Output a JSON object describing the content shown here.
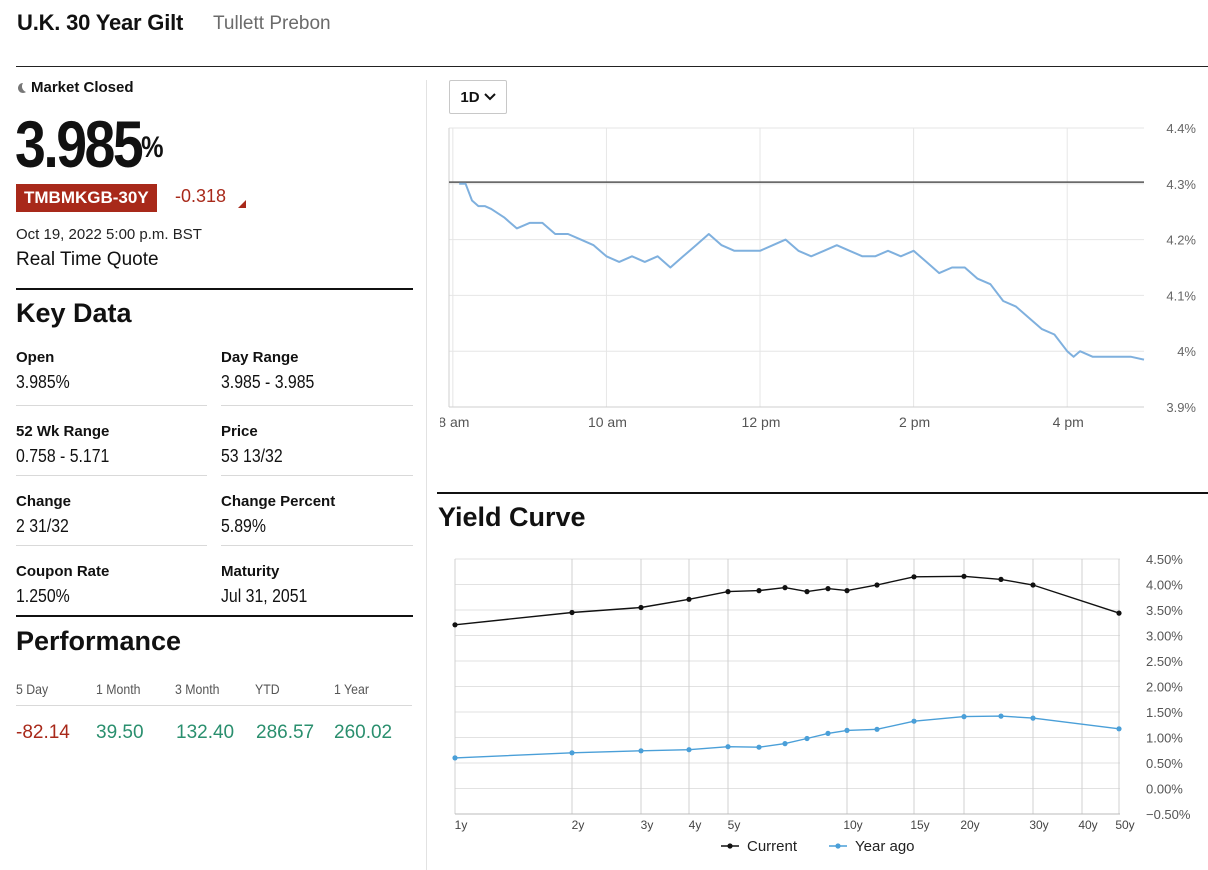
{
  "header": {
    "title": "U.K. 30 Year Gilt",
    "source": "Tullett Prebon"
  },
  "quote": {
    "market_status": "Market Closed",
    "price": "3.985",
    "price_unit": "%",
    "ticker": "TMBMKGB-30Y",
    "change": "-0.318",
    "timestamp": "Oct 19, 2022 5:00 p.m. BST",
    "quote_type": "Real Time Quote"
  },
  "key_data": {
    "title": "Key Data",
    "items": [
      {
        "label": "Open",
        "value": "3.985%"
      },
      {
        "label": "Day Range",
        "value": "3.985 - 3.985"
      },
      {
        "label": "52 Wk Range",
        "value": "0.758 - 5.171"
      },
      {
        "label": "Price",
        "value": "53 13/32"
      },
      {
        "label": "Change",
        "value": "2 31/32"
      },
      {
        "label": "Change Percent",
        "value": "5.89%"
      },
      {
        "label": "Coupon Rate",
        "value": "1.250%"
      },
      {
        "label": "Maturity",
        "value": "Jul 31, 2051"
      }
    ]
  },
  "performance": {
    "title": "Performance",
    "items": [
      {
        "label": "5 Day",
        "value": "-82.14",
        "direction": "neg"
      },
      {
        "label": "1 Month",
        "value": "39.50",
        "direction": "pos"
      },
      {
        "label": "3 Month",
        "value": "132.40",
        "direction": "pos"
      },
      {
        "label": "YTD",
        "value": "286.57",
        "direction": "pos"
      },
      {
        "label": "1 Year",
        "value": "260.02",
        "direction": "pos"
      }
    ]
  },
  "colors": {
    "negative": "#a8291a",
    "positive": "#2a8f6e",
    "intraday_line": "#7fb0de",
    "current_series": "#111111",
    "year_ago_series": "#4a9fd8"
  },
  "range_selector": {
    "selected": "1D"
  },
  "yield_curve_title": "Yield Curve",
  "chart_data": [
    {
      "type": "line",
      "x": [
        "8:05",
        "8:10",
        "8:15",
        "8:20",
        "8:25",
        "8:30",
        "8:40",
        "8:50",
        "9:00",
        "9:10",
        "9:20",
        "9:30",
        "9:40",
        "9:50",
        "10:00",
        "10:10",
        "10:20",
        "10:30",
        "10:40",
        "10:50",
        "11:00",
        "11:10",
        "11:20",
        "11:30",
        "11:40",
        "11:50",
        "12:00",
        "12:10",
        "12:20",
        "12:30",
        "12:40",
        "12:50",
        "13:00",
        "13:10",
        "13:20",
        "13:30",
        "13:40",
        "13:50",
        "14:00",
        "14:10",
        "14:20",
        "14:30",
        "14:40",
        "14:50",
        "15:00",
        "15:10",
        "15:20",
        "15:30",
        "15:40",
        "15:50",
        "16:00",
        "16:05",
        "16:10",
        "16:20",
        "16:30",
        "16:40",
        "16:50",
        "17:00"
      ],
      "y": [
        4.3,
        4.3,
        4.27,
        4.26,
        4.26,
        4.255,
        4.24,
        4.22,
        4.23,
        4.23,
        4.21,
        4.21,
        4.2,
        4.19,
        4.17,
        4.16,
        4.17,
        4.16,
        4.17,
        4.15,
        4.17,
        4.19,
        4.21,
        4.19,
        4.18,
        4.18,
        4.18,
        4.19,
        4.2,
        4.18,
        4.17,
        4.18,
        4.19,
        4.18,
        4.17,
        4.17,
        4.18,
        4.17,
        4.18,
        4.16,
        4.14,
        4.15,
        4.15,
        4.13,
        4.12,
        4.09,
        4.08,
        4.06,
        4.04,
        4.03,
        4.0,
        3.99,
        4.0,
        3.99,
        3.99,
        3.99,
        3.99,
        3.985
      ],
      "xticks": [
        "8 am",
        "10 am",
        "12 pm",
        "2 pm",
        "4 pm"
      ],
      "xtick_times": [
        "8:00",
        "10:00",
        "12:00",
        "14:00",
        "16:00"
      ],
      "yticks": [
        "4.4%",
        "4.3%",
        "4.2%",
        "4.1%",
        "4%",
        "3.9%"
      ],
      "ylim": [
        3.9,
        4.4
      ],
      "xlim": [
        "7:57",
        "17:00"
      ],
      "reference_line": 4.303,
      "grid": true
    },
    {
      "type": "line",
      "x": [
        "1y",
        "2y",
        "3y",
        "4y",
        "5y",
        "6y",
        "7y",
        "8y",
        "9y",
        "10y",
        "12y",
        "15y",
        "20y",
        "25y",
        "30y",
        "50y"
      ],
      "series": [
        {
          "name": "Current",
          "values": [
            3.21,
            3.45,
            3.55,
            3.71,
            3.86,
            3.88,
            3.94,
            3.86,
            3.92,
            3.88,
            3.99,
            4.15,
            4.16,
            4.1,
            3.99,
            3.44
          ]
        },
        {
          "name": "Year ago",
          "values": [
            0.6,
            0.7,
            0.74,
            0.76,
            0.82,
            0.81,
            0.88,
            0.98,
            1.08,
            1.14,
            1.16,
            1.32,
            1.41,
            1.42,
            1.38,
            1.17
          ]
        }
      ],
      "xticks": [
        "1y",
        "2y",
        "3y",
        "4y",
        "5y",
        "10y",
        "15y",
        "20y",
        "30y",
        "40y",
        "50y"
      ],
      "yticks": [
        "4.50%",
        "4.00%",
        "3.50%",
        "3.00%",
        "2.50%",
        "2.00%",
        "1.50%",
        "1.00%",
        "0.50%",
        "0.00%",
        "−0.50%"
      ],
      "ylim": [
        -0.5,
        4.5
      ],
      "legend_position": "bottom-center",
      "grid": true
    }
  ]
}
